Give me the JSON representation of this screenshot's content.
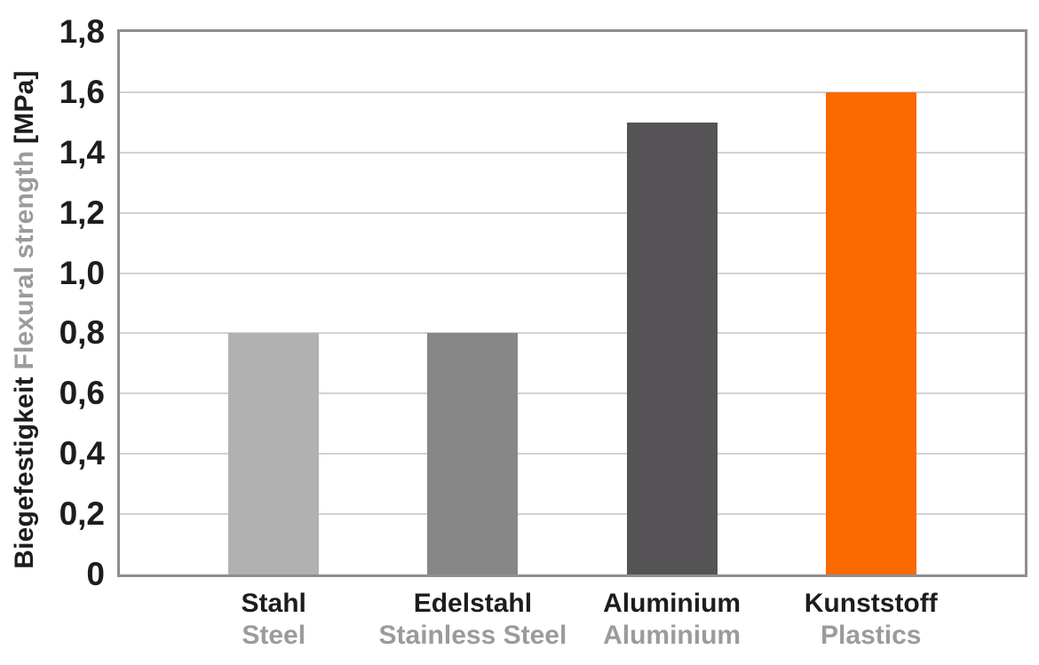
{
  "chart_data": {
    "type": "bar",
    "title": "",
    "ylabel_de": "Biegefestigkeit",
    "ylabel_en": "Flexural strength",
    "ylabel_unit": "[MPa]",
    "ylim": [
      0,
      1.8
    ],
    "decimal_separator": ",",
    "grid": true,
    "legend": false,
    "yticks": [
      {
        "value": 0.0,
        "label": "0"
      },
      {
        "value": 0.2,
        "label": "0,2"
      },
      {
        "value": 0.4,
        "label": "0,4"
      },
      {
        "value": 0.6,
        "label": "0,6"
      },
      {
        "value": 0.8,
        "label": "0,8"
      },
      {
        "value": 1.0,
        "label": "1,0"
      },
      {
        "value": 1.2,
        "label": "1,2"
      },
      {
        "value": 1.4,
        "label": "1,4"
      },
      {
        "value": 1.6,
        "label": "1,6"
      },
      {
        "value": 1.8,
        "label": "1,8"
      }
    ],
    "categories": [
      "Stahl",
      "Edelstahl",
      "Aluminium",
      "Kunststoff"
    ],
    "categories_en": [
      "Steel",
      "Stainless Steel",
      "Aluminium",
      "Plastics"
    ],
    "values": [
      0.8,
      0.8,
      1.5,
      1.6
    ],
    "bar_colors": [
      "#b1b1b2",
      "#878787",
      "#555355",
      "#fa6900"
    ]
  },
  "colors": {
    "grid": "#d2d2d2",
    "axis_border": "#8e8e8e",
    "text_dark": "#1d1d1d",
    "text_gray": "#9b9b9b",
    "background": "#ffffff"
  }
}
